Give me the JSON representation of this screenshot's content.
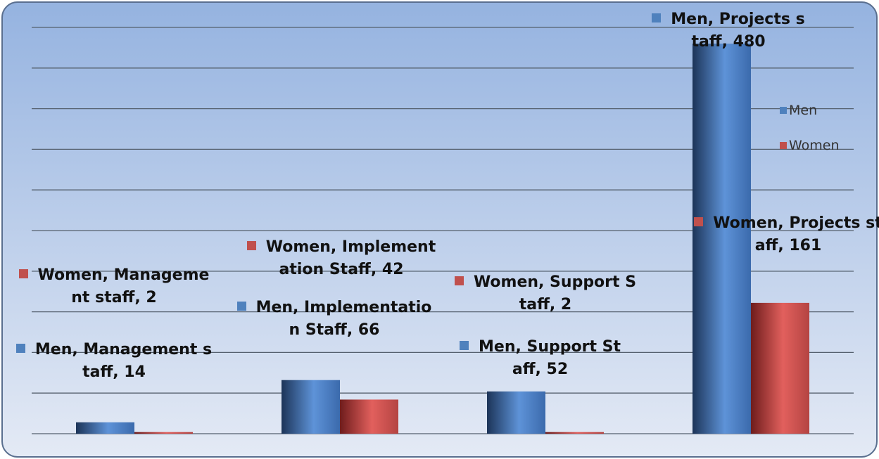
{
  "chart_data": {
    "type": "bar",
    "categories": [
      "Management staff",
      "Implementation Staff",
      "Support Staff",
      "Projects staff"
    ],
    "series": [
      {
        "name": "Men",
        "color": "#4f81bd",
        "values": [
          14,
          66,
          52,
          480
        ],
        "value_labels": [
          "Men, Management staff, 14",
          "Men, Implementation Staff, 66",
          "Men, Support Staff, 52",
          "Men, Projects staff, 480"
        ]
      },
      {
        "name": "Women",
        "color": "#c0504d",
        "values": [
          2,
          42,
          2,
          161
        ],
        "value_labels": [
          "Women, Management staff, 2",
          "Women, Implementation Staff, 42",
          "Women, Support Staff, 2",
          "Women, Projects staff, 161"
        ]
      }
    ],
    "ylim": [
      0,
      500
    ],
    "yticks": [
      0,
      50,
      100,
      150,
      200,
      250,
      300,
      350,
      400,
      450,
      500
    ],
    "grid": true,
    "legend": "right"
  }
}
